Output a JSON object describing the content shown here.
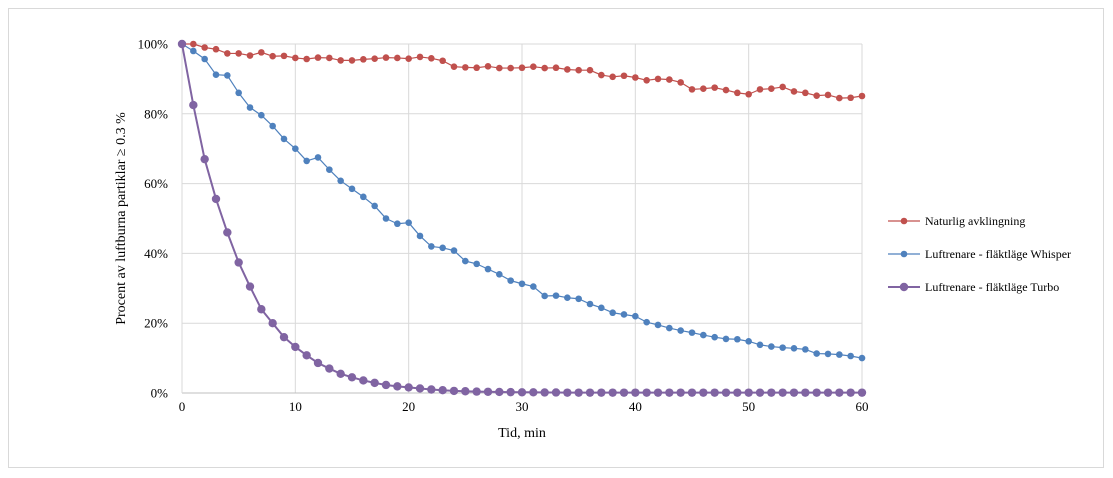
{
  "chart_data": {
    "type": "line",
    "xlabel": "Tid, min",
    "ylabel": "Procent av luftburna partiklar ≥ 0.3 %",
    "xlim": [
      0,
      60
    ],
    "ylim": [
      0,
      100
    ],
    "x_ticks": [
      0,
      10,
      20,
      30,
      40,
      50,
      60
    ],
    "y_ticks": [
      0,
      20,
      40,
      60,
      80,
      100
    ],
    "y_tick_labels": [
      "0%",
      "20%",
      "40%",
      "60%",
      "80%",
      "100%"
    ],
    "grid": true,
    "legend_position": "right",
    "x": [
      0,
      1,
      2,
      3,
      4,
      5,
      6,
      7,
      8,
      9,
      10,
      11,
      12,
      13,
      14,
      15,
      16,
      17,
      18,
      19,
      20,
      21,
      22,
      23,
      24,
      25,
      26,
      27,
      28,
      29,
      30,
      31,
      32,
      33,
      34,
      35,
      36,
      37,
      38,
      39,
      40,
      41,
      42,
      43,
      44,
      45,
      46,
      47,
      48,
      49,
      50,
      51,
      52,
      53,
      54,
      55,
      56,
      57,
      58,
      59,
      60
    ],
    "series": [
      {
        "name": "Naturlig avklingning",
        "color": "#c0504d",
        "marker_size": 3.3,
        "line_width": 1.2,
        "values": [
          100,
          100,
          99,
          98.5,
          97.3,
          97.3,
          96.7,
          97.6,
          96.5,
          96.6,
          96,
          95.7,
          96.1,
          96,
          95.3,
          95.3,
          95.6,
          95.8,
          96.1,
          96,
          95.8,
          96.3,
          95.9,
          95.2,
          93.5,
          93.3,
          93.2,
          93.6,
          93.1,
          93.1,
          93.2,
          93.5,
          93.1,
          93.2,
          92.7,
          92.5,
          92.5,
          91.1,
          90.6,
          90.9,
          90.4,
          89.6,
          90,
          89.8,
          89,
          87,
          87.2,
          87.5,
          86.8,
          86,
          85.6,
          87,
          87.2,
          87.7,
          86.4,
          86,
          85.2,
          85.4,
          84.5,
          84.6,
          85.1
        ]
      },
      {
        "name": "Luftrenare - fläktläge Whisper",
        "color": "#4f81bd",
        "marker_size": 3.3,
        "line_width": 1.2,
        "values": [
          100,
          98,
          95.7,
          91.2,
          91,
          86,
          81.8,
          79.6,
          76.5,
          72.8,
          70,
          66.5,
          67.5,
          64,
          60.8,
          58.5,
          56.2,
          53.6,
          50,
          48.5,
          48.8,
          45,
          42,
          41.6,
          40.8,
          37.8,
          37,
          35.5,
          34,
          32.2,
          31.3,
          30.5,
          27.8,
          27.9,
          27.3,
          27,
          25.5,
          24.4,
          23,
          22.5,
          22,
          20.3,
          19.5,
          18.6,
          17.9,
          17.3,
          16.6,
          16,
          15.5,
          15.4,
          14.8,
          13.8,
          13.3,
          13,
          12.8,
          12.5,
          11.3,
          11.2,
          11,
          10.6,
          10
        ]
      },
      {
        "name": "Luftrenare - fläktläge Turbo",
        "color": "#8064a2",
        "marker_size": 4.2,
        "line_width": 2,
        "values": [
          100,
          82.5,
          67,
          55.6,
          46,
          37.4,
          30.5,
          24,
          20,
          16,
          13.2,
          10.8,
          8.6,
          7,
          5.5,
          4.5,
          3.6,
          2.9,
          2.3,
          1.9,
          1.6,
          1.3,
          1,
          0.8,
          0.6,
          0.5,
          0.4,
          0.35,
          0.3,
          0.25,
          0.2,
          0.2,
          0.15,
          0.15,
          0.1,
          0.1,
          0.1,
          0.1,
          0.1,
          0.1,
          0.1,
          0.1,
          0.1,
          0.1,
          0.1,
          0.1,
          0.1,
          0.1,
          0.1,
          0.1,
          0.1,
          0.1,
          0.1,
          0.1,
          0.1,
          0.1,
          0.1,
          0.1,
          0.1,
          0.1,
          0.1
        ]
      }
    ]
  }
}
